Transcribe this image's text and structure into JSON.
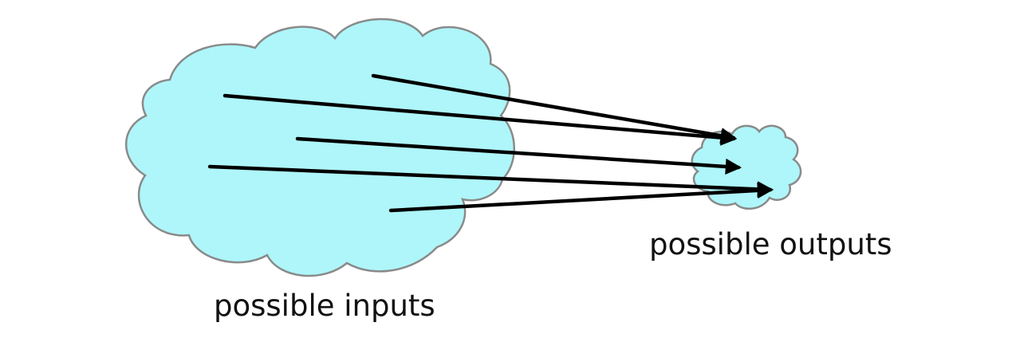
{
  "labels": {
    "inputs": "possible inputs",
    "outputs": "possible outputs"
  },
  "colors": {
    "cloud_fill": "#aef6fa",
    "cloud_stroke": "#8a8a8a",
    "arrow": "#000000",
    "text": "#111111"
  },
  "arrow_count": 5
}
